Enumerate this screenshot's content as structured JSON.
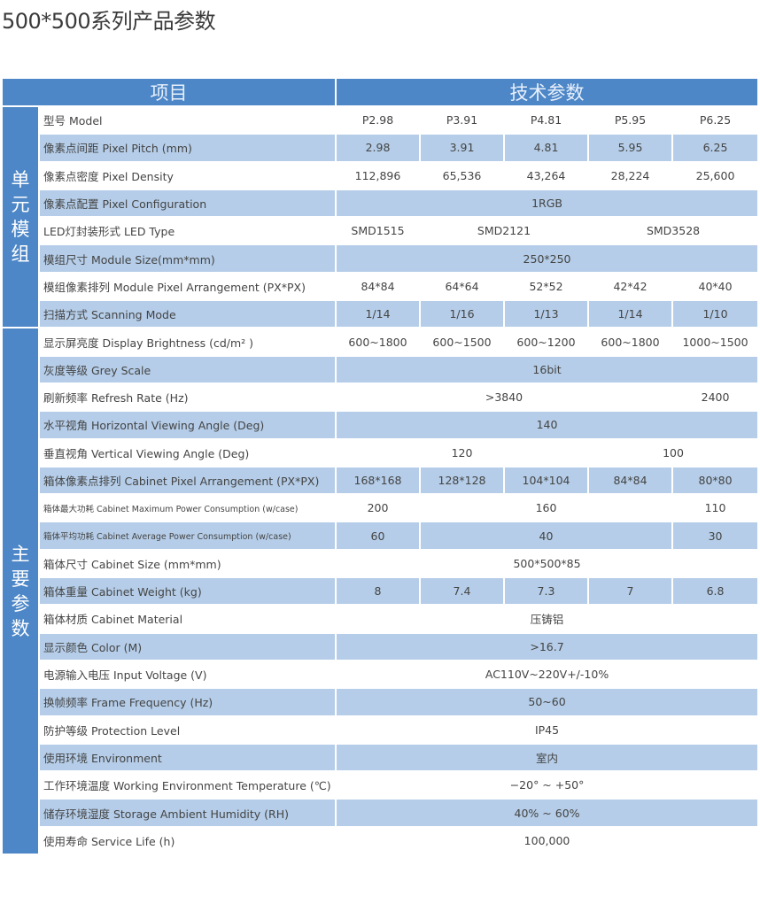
{
  "title": "500*500系列产品参数",
  "header": {
    "item": "项目",
    "spec": "技术参数"
  },
  "colors": {
    "header_blue": "#4d87c7",
    "row_blue": "#b5cde8"
  },
  "groups": [
    {
      "label": "单元模组",
      "rows": 8
    },
    {
      "label": "主要参数",
      "rows": 19
    }
  ],
  "rows": [
    {
      "label": "型号 Model",
      "cells": [
        {
          "v": "P2.98"
        },
        {
          "v": "P3.91"
        },
        {
          "v": "P4.81"
        },
        {
          "v": "P5.95"
        },
        {
          "v": "P6.25"
        }
      ]
    },
    {
      "label": "像素点间距 Pixel Pitch (mm)",
      "cells": [
        {
          "v": "2.98"
        },
        {
          "v": "3.91"
        },
        {
          "v": "4.81"
        },
        {
          "v": "5.95"
        },
        {
          "v": "6.25"
        }
      ]
    },
    {
      "label": "像素点密度 Pixel Density",
      "cells": [
        {
          "v": "112,896"
        },
        {
          "v": "65,536"
        },
        {
          "v": "43,264"
        },
        {
          "v": "28,224"
        },
        {
          "v": "25,600"
        }
      ]
    },
    {
      "label": "像素点配置 Pixel Configuration",
      "cells": [
        {
          "v": "1RGB",
          "span": 5
        }
      ]
    },
    {
      "label": "LED灯封装形式 LED Type",
      "cells": [
        {
          "v": "SMD1515"
        },
        {
          "v": "SMD2121",
          "span": 2
        },
        {
          "v": "SMD3528",
          "span": 2
        }
      ]
    },
    {
      "label": "模组尺寸 Module Size(mm*mm)",
      "cells": [
        {
          "v": "250*250",
          "span": 5
        }
      ]
    },
    {
      "label": "模组像素排列 Module Pixel Arrangement (PX*PX)",
      "cells": [
        {
          "v": "84*84"
        },
        {
          "v": "64*64"
        },
        {
          "v": "52*52"
        },
        {
          "v": "42*42"
        },
        {
          "v": "40*40"
        }
      ]
    },
    {
      "label": "扫描方式 Scanning Mode",
      "cells": [
        {
          "v": "1/14"
        },
        {
          "v": "1/16"
        },
        {
          "v": "1/13"
        },
        {
          "v": "1/14"
        },
        {
          "v": "1/10"
        }
      ]
    },
    {
      "label": "显示屏亮度 Display Brightness (cd/m² )",
      "cells": [
        {
          "v": "600~1800"
        },
        {
          "v": "600~1500"
        },
        {
          "v": "600~1200"
        },
        {
          "v": "600~1800"
        },
        {
          "v": "1000~1500"
        }
      ]
    },
    {
      "label": "灰度等级 Grey Scale",
      "cells": [
        {
          "v": "16bit",
          "span": 5
        }
      ]
    },
    {
      "label": "刷新频率 Refresh Rate (Hz)",
      "cells": [
        {
          "v": ">3840",
          "span": 4
        },
        {
          "v": "2400"
        }
      ]
    },
    {
      "label": "水平视角  Horizontal Viewing Angle (Deg)",
      "cells": [
        {
          "v": "140",
          "span": 5
        }
      ]
    },
    {
      "label": "垂直视角 Vertical Viewing Angle (Deg)",
      "cells": [
        {
          "v": "120",
          "span": 3
        },
        {
          "v": "100",
          "span": 2
        }
      ]
    },
    {
      "label": "箱体像素点排列 Cabinet Pixel Arrangement (PX*PX)",
      "cells": [
        {
          "v": "168*168"
        },
        {
          "v": "128*128"
        },
        {
          "v": "104*104"
        },
        {
          "v": "84*84"
        },
        {
          "v": "80*80"
        }
      ]
    },
    {
      "label": "箱体最大功耗 Cabinet Maximum Power Consumption (w/case)",
      "small": true,
      "cells": [
        {
          "v": "200"
        },
        {
          "v": "160",
          "span": 3
        },
        {
          "v": "110"
        }
      ]
    },
    {
      "label": "箱体平均功耗 Cabinet Average Power Consumption (w/case)",
      "small": true,
      "cells": [
        {
          "v": "60"
        },
        {
          "v": "40",
          "span": 3
        },
        {
          "v": "30"
        }
      ]
    },
    {
      "label": "箱体尺寸 Cabinet Size (mm*mm)",
      "cells": [
        {
          "v": "500*500*85",
          "span": 5
        }
      ]
    },
    {
      "label": "箱体重量 Cabinet Weight (kg)",
      "cells": [
        {
          "v": "8"
        },
        {
          "v": "7.4"
        },
        {
          "v": "7.3"
        },
        {
          "v": "7"
        },
        {
          "v": "6.8"
        }
      ]
    },
    {
      "label": "箱体材质 Cabinet Material",
      "cells": [
        {
          "v": "压铸铝",
          "span": 5
        }
      ]
    },
    {
      "label": "显示颜色 Color (M)",
      "cells": [
        {
          "v": ">16.7",
          "span": 5
        }
      ]
    },
    {
      "label": "电源输入电压 Input Voltage (V)",
      "cells": [
        {
          "v": "AC110V~220V+/-10%",
          "span": 5
        }
      ]
    },
    {
      "label": "换帧频率 Frame Frequency (Hz)",
      "cells": [
        {
          "v": "50~60",
          "span": 5
        }
      ]
    },
    {
      "label": "防护等级 Protection Level",
      "cells": [
        {
          "v": "IP45",
          "span": 5
        }
      ]
    },
    {
      "label": "使用环境 Environment",
      "cells": [
        {
          "v": "室内",
          "span": 5
        }
      ]
    },
    {
      "label": "工作环境温度 Working Environment Temperature (℃)",
      "cells": [
        {
          "v": "−20°  ~ +50°",
          "span": 5
        }
      ]
    },
    {
      "label": "储存环境湿度 Storage Ambient Humidity (RH)",
      "cells": [
        {
          "v": "40% ~ 60%",
          "span": 5
        }
      ]
    },
    {
      "label": "使用寿命 Service Life (h)",
      "cells": [
        {
          "v": "100,000",
          "span": 5
        }
      ]
    }
  ]
}
